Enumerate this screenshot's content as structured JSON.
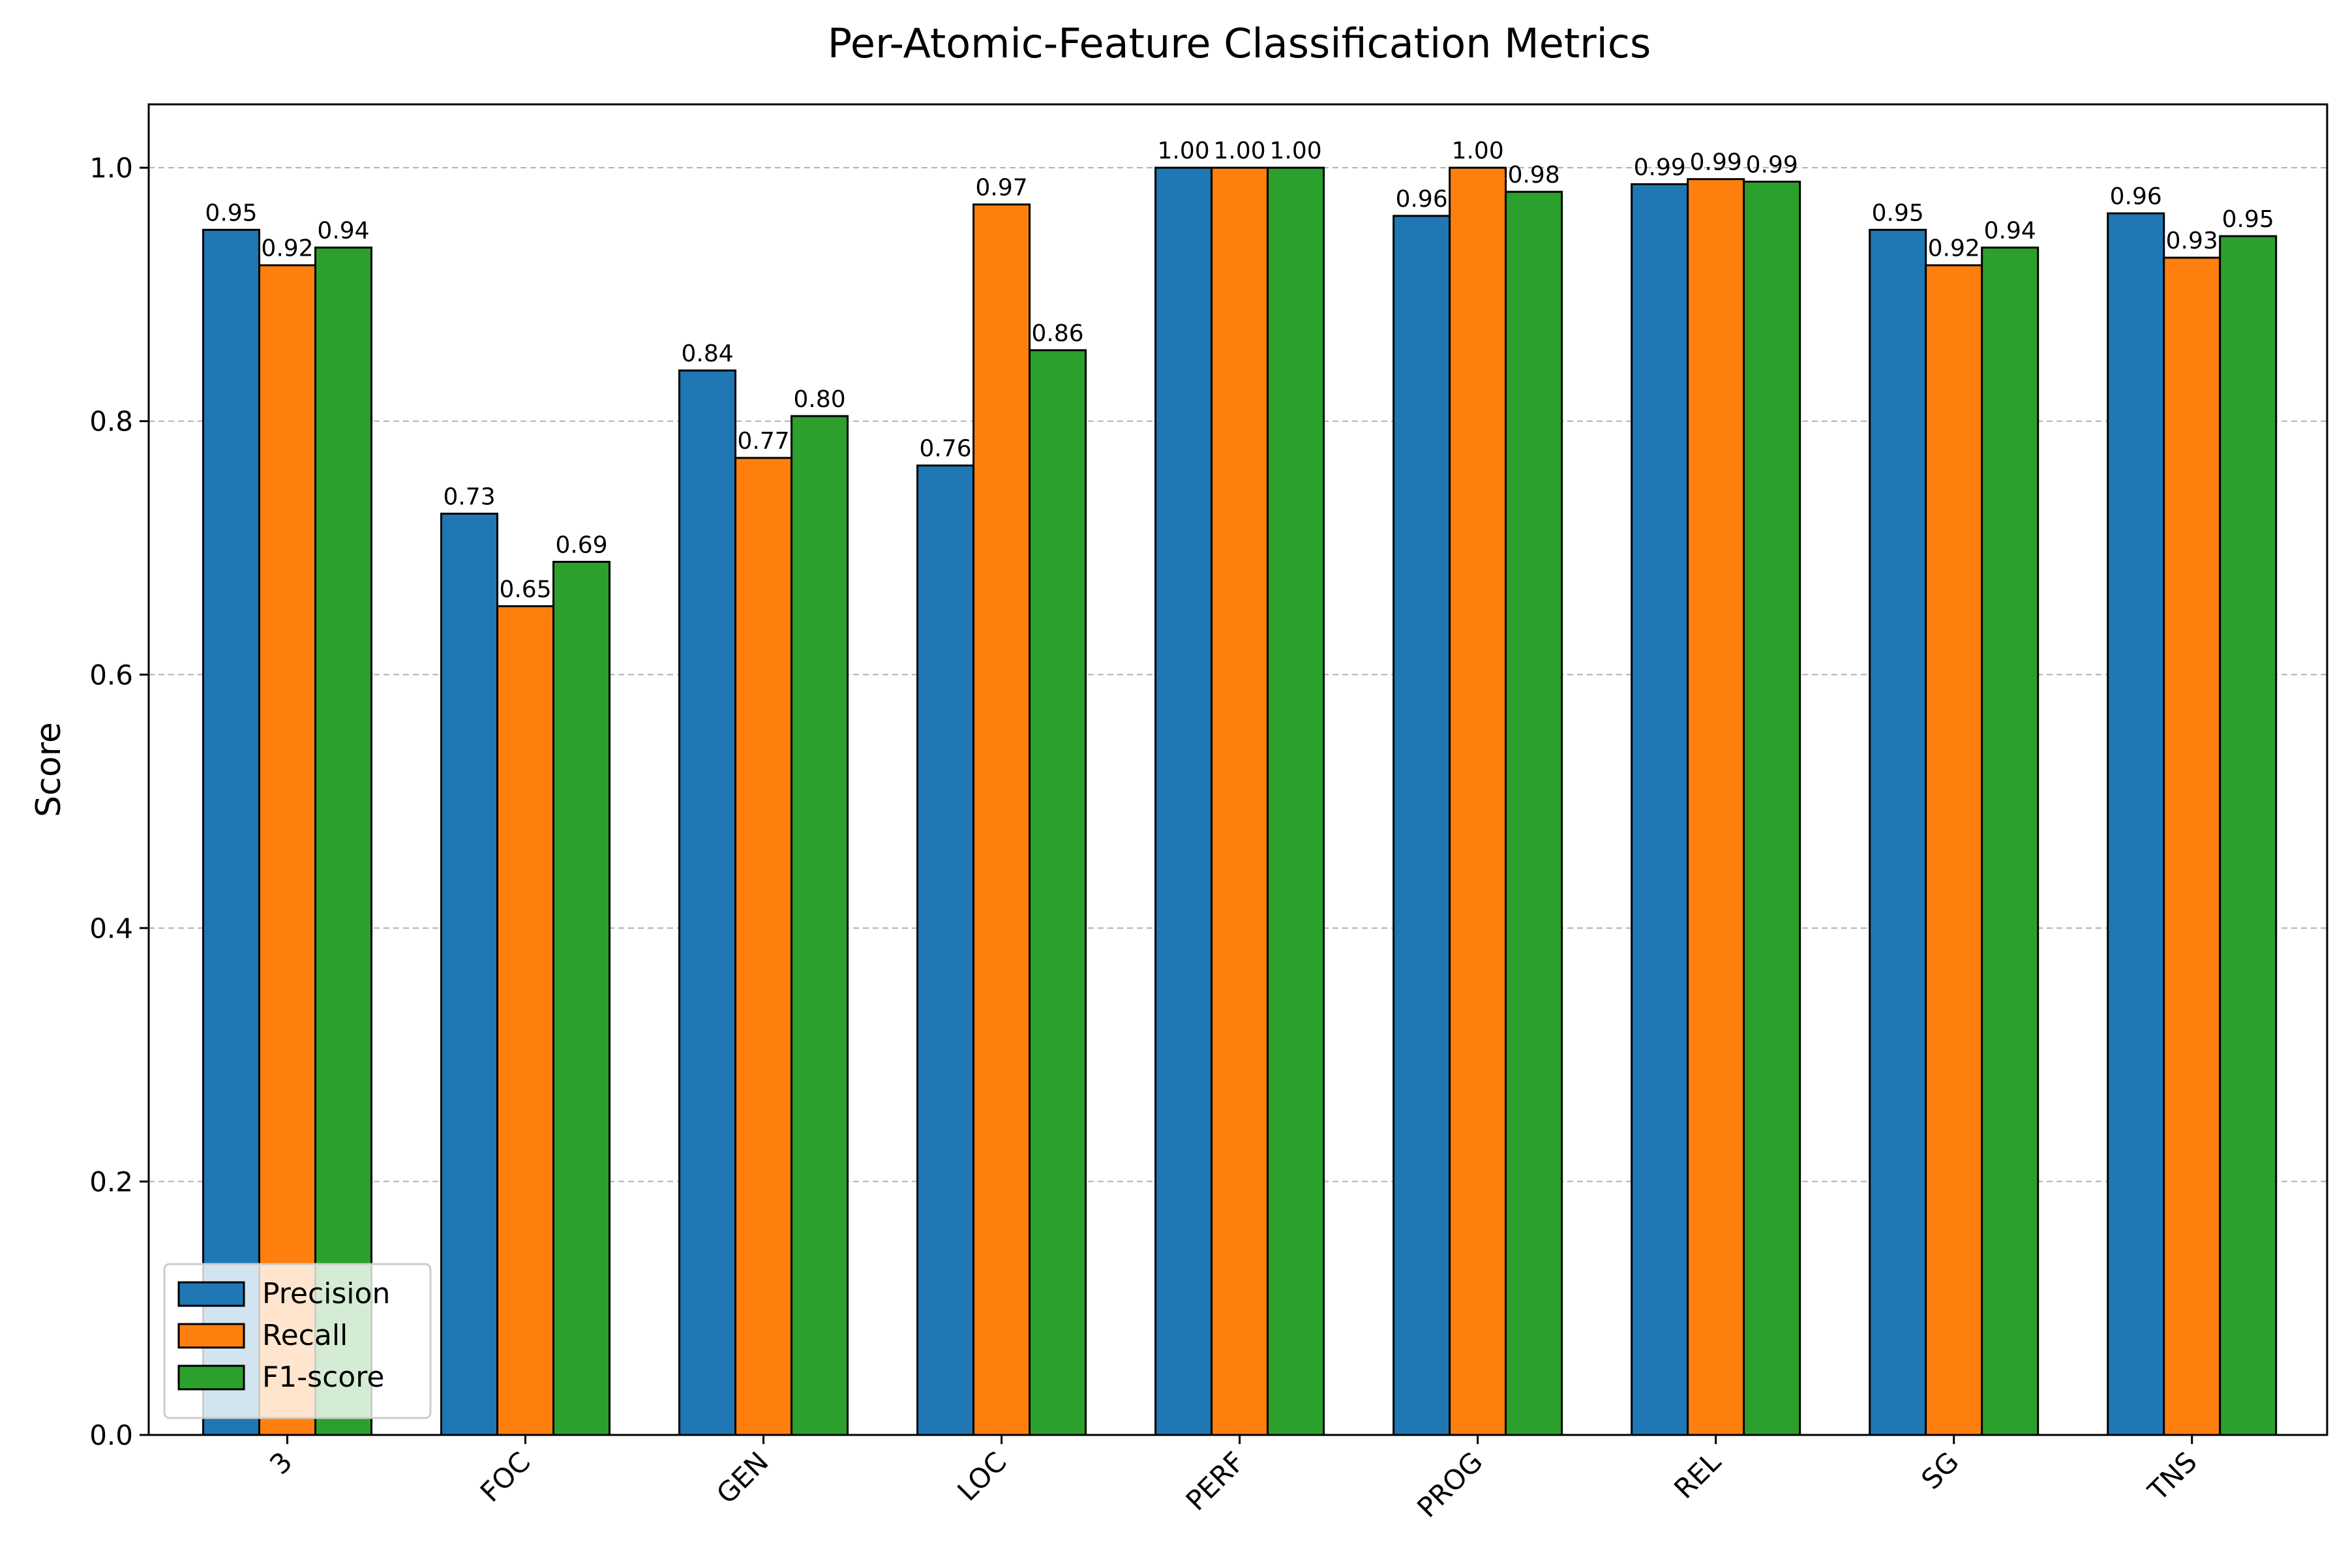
{
  "chart_data": {
    "type": "bar",
    "title": "Per-Atomic-Feature Classification Metrics",
    "xlabel": "",
    "ylabel": "Score",
    "ylim": [
      0,
      1.05
    ],
    "yticks": [
      0.0,
      0.2,
      0.4,
      0.6,
      0.8,
      1.0
    ],
    "ytick_labels": [
      "0.0",
      "0.2",
      "0.4",
      "0.6",
      "0.8",
      "1.0"
    ],
    "grid": "y-dashed",
    "legend_position": "lower-left",
    "categories": [
      "3",
      "FOC",
      "GEN",
      "LOC",
      "PERF",
      "PROG",
      "REL",
      "SG",
      "TNS"
    ],
    "series": [
      {
        "name": "Precision",
        "color": "#1f77b4",
        "values": [
          0.951,
          0.727,
          0.84,
          0.765,
          1.0,
          0.962,
          0.987,
          0.951,
          0.964
        ],
        "labels": [
          "0.95",
          "0.73",
          "0.84",
          "0.76",
          "1.00",
          "0.96",
          "0.99",
          "0.95",
          "0.96"
        ]
      },
      {
        "name": "Recall",
        "color": "#ff7f0e",
        "values": [
          0.923,
          0.654,
          0.771,
          0.971,
          1.0,
          1.0,
          0.991,
          0.923,
          0.929
        ],
        "labels": [
          "0.92",
          "0.65",
          "0.77",
          "0.97",
          "1.00",
          "1.00",
          "0.99",
          "0.92",
          "0.93"
        ]
      },
      {
        "name": "F1-score",
        "color": "#2ca02c",
        "values": [
          0.937,
          0.689,
          0.804,
          0.856,
          1.0,
          0.981,
          0.989,
          0.937,
          0.946
        ],
        "labels": [
          "0.94",
          "0.69",
          "0.80",
          "0.86",
          "1.00",
          "0.98",
          "0.99",
          "0.94",
          "0.95"
        ]
      }
    ]
  }
}
